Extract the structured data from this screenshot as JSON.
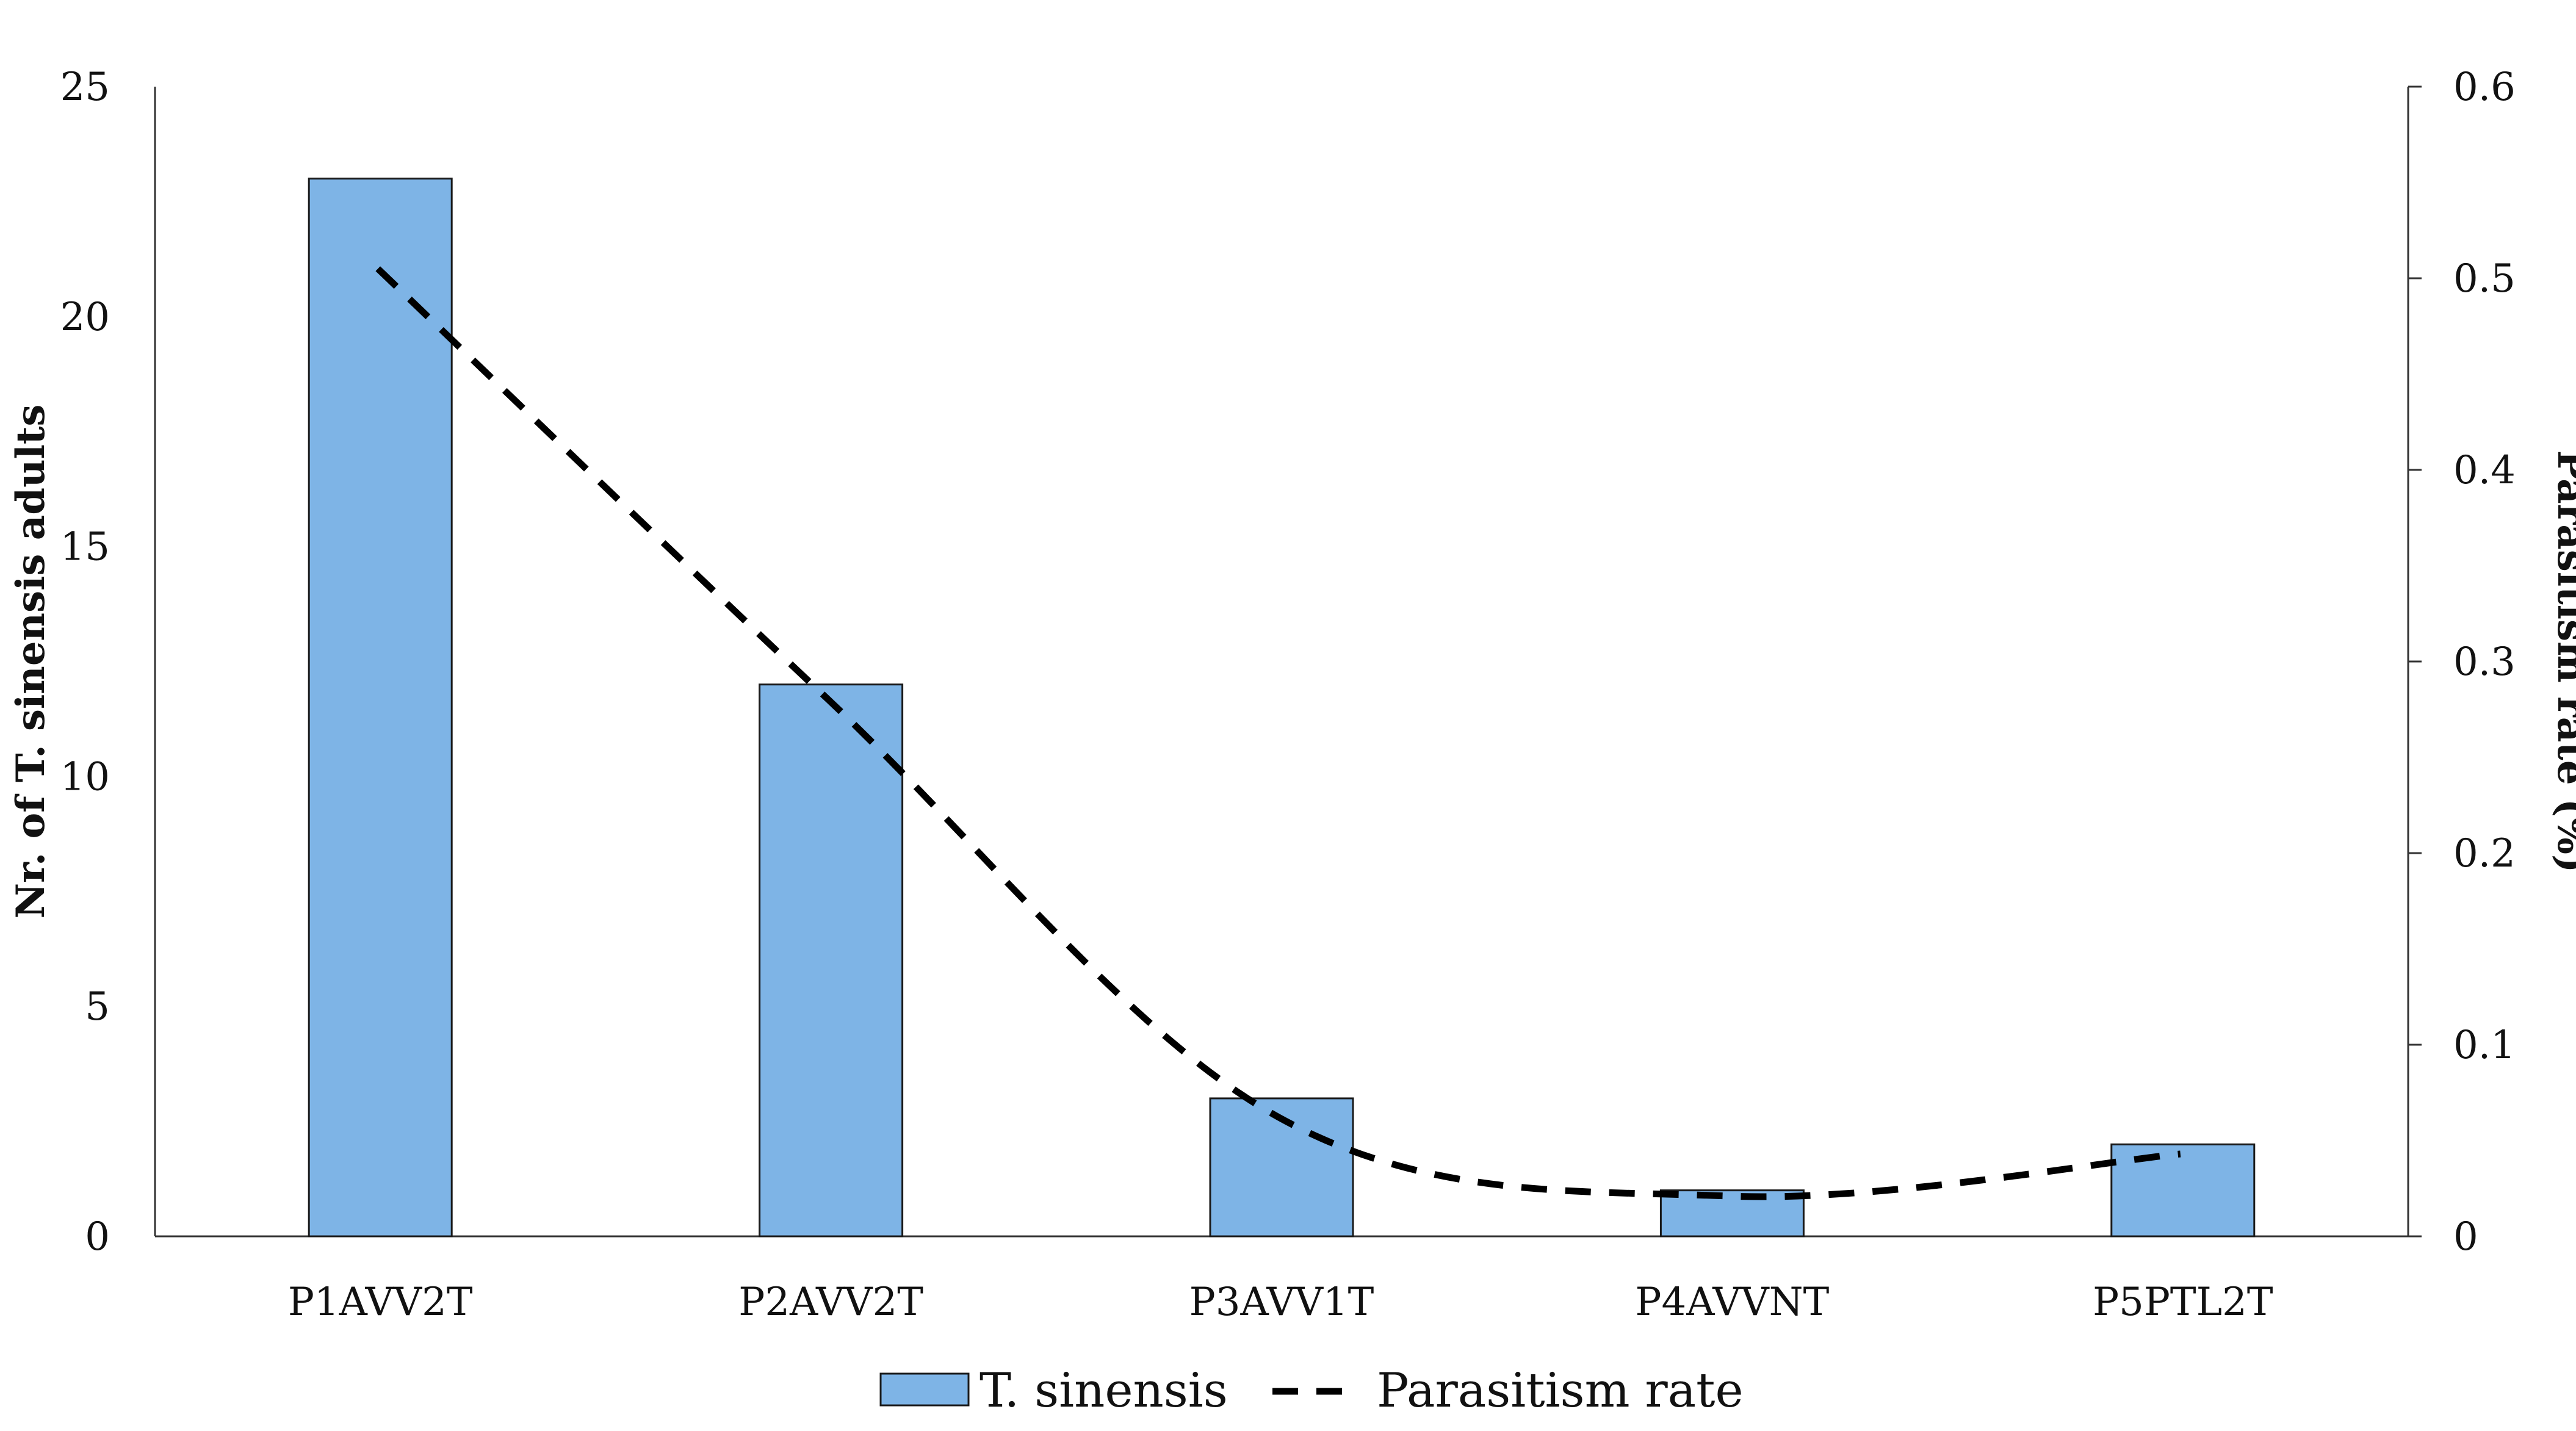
{
  "chart_data": {
    "type": "bar",
    "categories": [
      "P1AVV2T",
      "P2AVV2T",
      "P3AVV1T",
      "P4AVVNT",
      "P5PTL2T"
    ],
    "series": [
      {
        "name": "T. sinensis",
        "type": "bar",
        "axis": "left",
        "values": [
          23,
          12,
          3,
          1,
          2
        ]
      },
      {
        "name": "Parasitism rate",
        "type": "line",
        "style": "dashed",
        "axis": "right",
        "values": [
          0.505,
          0.28,
          0.062,
          0.021,
          0.043
        ]
      }
    ],
    "ylabel": "Nr. of T. sinensis adults",
    "y2label": "Parasitism rate (%)",
    "ylim": [
      0,
      25
    ],
    "y2lim": [
      0,
      0.6
    ],
    "yticks": [
      "0",
      "5",
      "10",
      "15",
      "20",
      "25"
    ],
    "y2ticks": [
      "0",
      "0.1",
      "0.2",
      "0.3",
      "0.4",
      "0.5",
      "0.6"
    ],
    "grid": false,
    "legend_position": "bottom",
    "colors": {
      "bar_fill": "#7eb4e6",
      "bar_stroke": "#1a1a1a",
      "line": "#000000",
      "axis": "#333333"
    }
  }
}
